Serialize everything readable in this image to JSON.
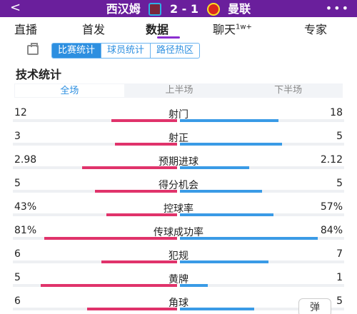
{
  "header": {
    "back_icon": "back-arrow-icon",
    "home_team": "西汉姆",
    "score": "2 - 1",
    "away_team": "曼联",
    "more_icon": "more-dots-icon",
    "colors": {
      "bar": "#6a1f9c",
      "home_bar": "#e0336b",
      "away_bar": "#3a9be6"
    }
  },
  "nav": {
    "tabs": [
      "直播",
      "首发",
      "数据",
      "聊天",
      "专家"
    ],
    "chat_badge": "1w+",
    "active": "数据"
  },
  "subtabs": [
    "比赛统计",
    "球员统计",
    "路径热区"
  ],
  "section_title": "技术统计",
  "periods": [
    "全场",
    "上半场",
    "下半场"
  ],
  "stats": [
    {
      "label": "射门",
      "home": "12",
      "away": "18",
      "home_frac": 0.4,
      "away_frac": 0.6
    },
    {
      "label": "射正",
      "home": "3",
      "away": "5",
      "home_frac": 0.38,
      "away_frac": 0.62
    },
    {
      "label": "预期进球",
      "home": "2.98",
      "away": "2.12",
      "home_frac": 0.58,
      "away_frac": 0.42
    },
    {
      "label": "得分机会",
      "home": "5",
      "away": "5",
      "home_frac": 0.5,
      "away_frac": 0.5
    },
    {
      "label": "控球率",
      "home": "43%",
      "away": "57%",
      "home_frac": 0.43,
      "away_frac": 0.57
    },
    {
      "label": "传球成功率",
      "home": "81%",
      "away": "84%",
      "home_frac": 0.81,
      "away_frac": 0.84
    },
    {
      "label": "犯规",
      "home": "6",
      "away": "7",
      "home_frac": 0.46,
      "away_frac": 0.54
    },
    {
      "label": "黄牌",
      "home": "5",
      "away": "1",
      "home_frac": 0.83,
      "away_frac": 0.17
    },
    {
      "label": "角球",
      "home": "6",
      "away": "5",
      "home_frac": 0.55,
      "away_frac": 0.45
    }
  ],
  "danmu_button": "弹"
}
